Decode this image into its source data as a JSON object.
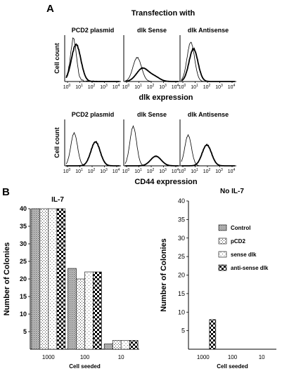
{
  "panel_a": {
    "label": "A",
    "title": "Transfection with",
    "column_headers": [
      "PCD2 plasmid",
      "dlk Sense",
      "dlk Antisense"
    ],
    "y_label": "Cell count",
    "x_ticks": [
      {
        "text": "10",
        "sup": "0"
      },
      {
        "text": "10",
        "sup": "1"
      },
      {
        "text": "10",
        "sup": "2"
      },
      {
        "text": "10",
        "sup": "3"
      },
      {
        "text": "10",
        "sup": "4"
      }
    ],
    "row1_xlabel": "dlk expression",
    "row2_xlabel": "CD44 expression"
  },
  "panel_b": {
    "label": "B"
  },
  "chart_data": [
    {
      "type": "bar",
      "title": "IL-7",
      "ylabel": "Number of Colonies",
      "xlabel": "Cell seeded",
      "categories": [
        "1000",
        "100",
        "10"
      ],
      "yticks": [
        "5",
        "10",
        "15",
        "20",
        "25",
        "30",
        "35",
        "40"
      ],
      "ylim": [
        0,
        40
      ],
      "series": [
        {
          "name": "Control",
          "values": [
            40,
            23,
            1.5
          ]
        },
        {
          "name": "pCD2",
          "values": [
            40,
            20,
            2.5
          ]
        },
        {
          "name": "sense dlk",
          "values": [
            40,
            22,
            2.5
          ]
        },
        {
          "name": "anti-sense dlk",
          "values": [
            40,
            22,
            2.5
          ]
        }
      ],
      "colors": [
        "#7a7a7a",
        "#bdbdbd",
        "#e6e6e6",
        "#000000"
      ]
    },
    {
      "type": "bar",
      "title": "No IL-7",
      "ylabel": "Number of Colonies",
      "xlabel": "Cell seeded",
      "categories": [
        "1000",
        "100",
        "10"
      ],
      "yticks": [
        "5",
        "10",
        "15",
        "20",
        "25",
        "30",
        "35",
        "40"
      ],
      "ylim": [
        0,
        40
      ],
      "series": [
        {
          "name": "Control",
          "values": [
            0,
            0,
            0
          ]
        },
        {
          "name": "pCD2",
          "values": [
            0,
            0,
            0
          ]
        },
        {
          "name": "sense dlk",
          "values": [
            0,
            0,
            0
          ]
        },
        {
          "name": "anti-sense dlk",
          "values": [
            8,
            0,
            0
          ]
        }
      ],
      "legend_position": "right",
      "colors": [
        "#7a7a7a",
        "#bdbdbd",
        "#e6e6e6",
        "#000000"
      ]
    }
  ]
}
